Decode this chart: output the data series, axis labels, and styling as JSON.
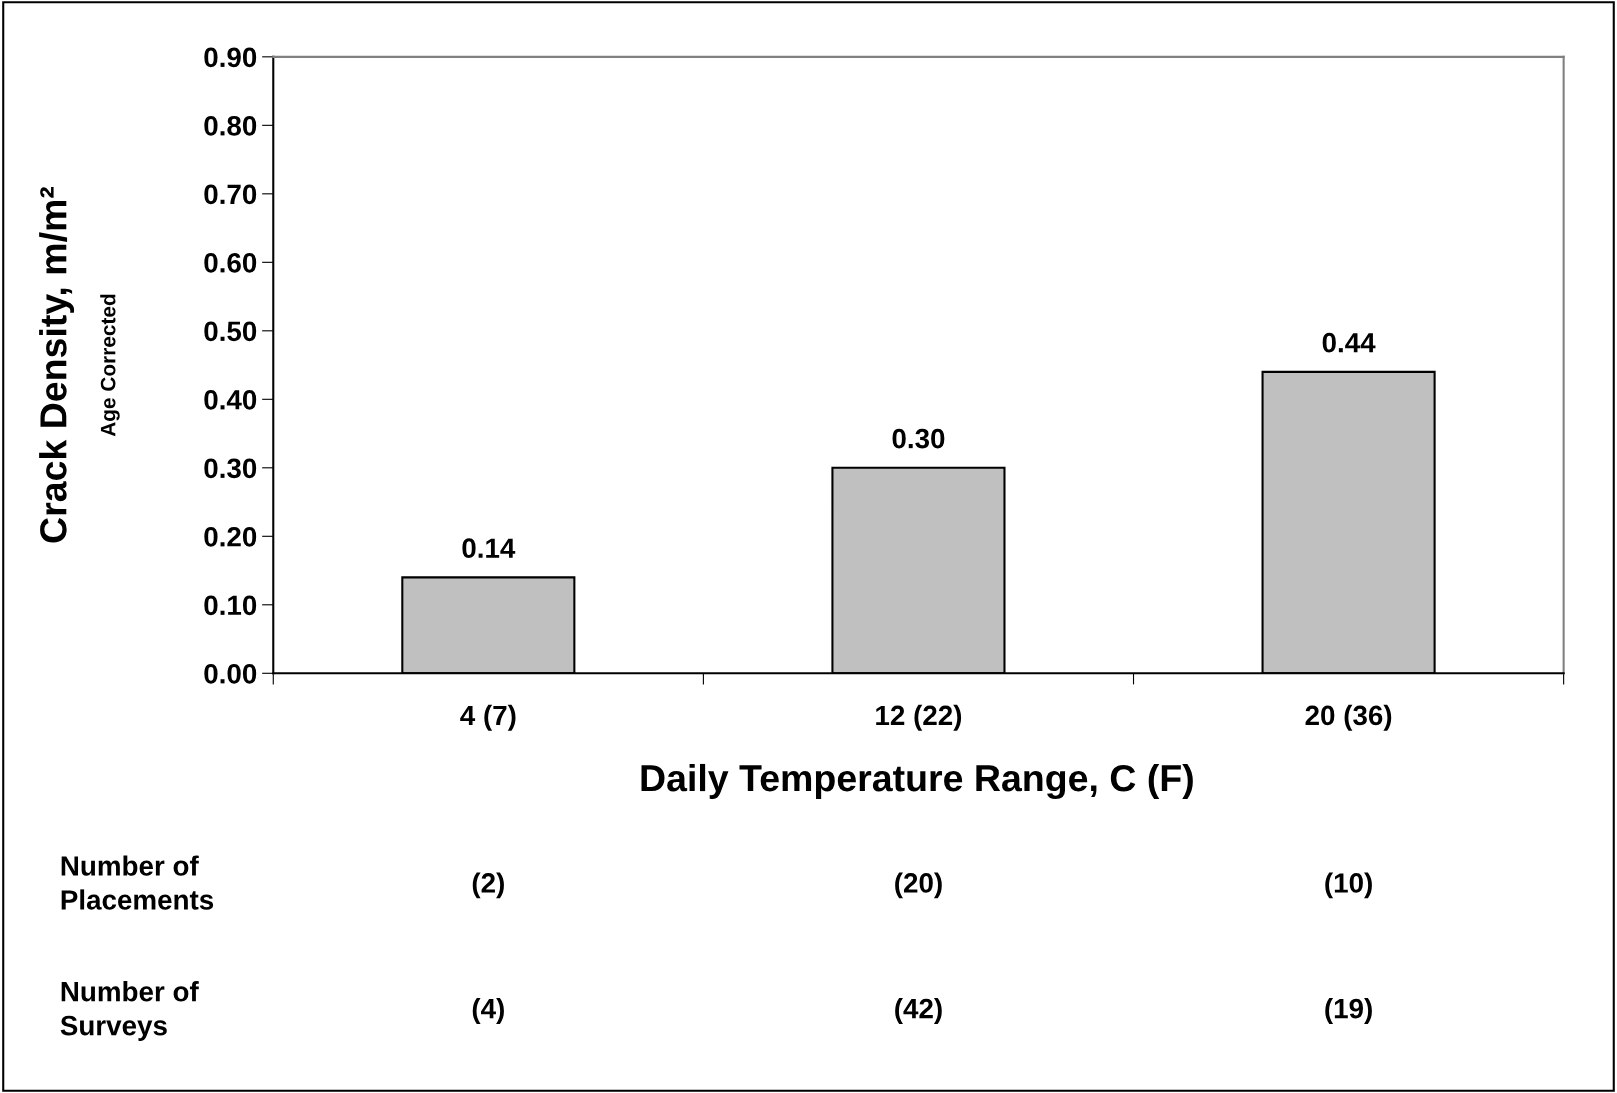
{
  "chart_data": {
    "type": "bar",
    "categories": [
      "4 (7)",
      "12 (22)",
      "20 (36)"
    ],
    "values": [
      0.14,
      0.3,
      0.44
    ],
    "color": "#c0c0c0",
    "xlabel": "Daily Temperature Range, C (F)",
    "ylabel": "Crack Density, m/m²",
    "ylim": [
      0,
      0.9
    ],
    "yticks": [
      {
        "value": 0,
        "label": "0.00"
      },
      {
        "value": 0.1,
        "label": "0.10"
      },
      {
        "value": 0.2,
        "label": "0.20"
      },
      {
        "value": 0.3,
        "label": "0.30"
      },
      {
        "value": 0.4,
        "label": "0.40"
      },
      {
        "value": 0.5,
        "label": "0.50"
      },
      {
        "value": 0.6,
        "label": "0.60"
      },
      {
        "value": 0.7,
        "label": "0.70"
      },
      {
        "value": 0.8,
        "label": "0.80"
      },
      {
        "value": 0.9,
        "label": "0.90"
      }
    ],
    "value_labels": [
      "0.14",
      "0.30",
      "0.44"
    ],
    "grid": false,
    "legend": false,
    "annotations": [
      "Age Corrected",
      "Number of\nPlacements",
      "(2)",
      "(20)",
      "(10)",
      "Number of\nSurveys",
      "(4)",
      "(42)",
      "(19)"
    ]
  }
}
